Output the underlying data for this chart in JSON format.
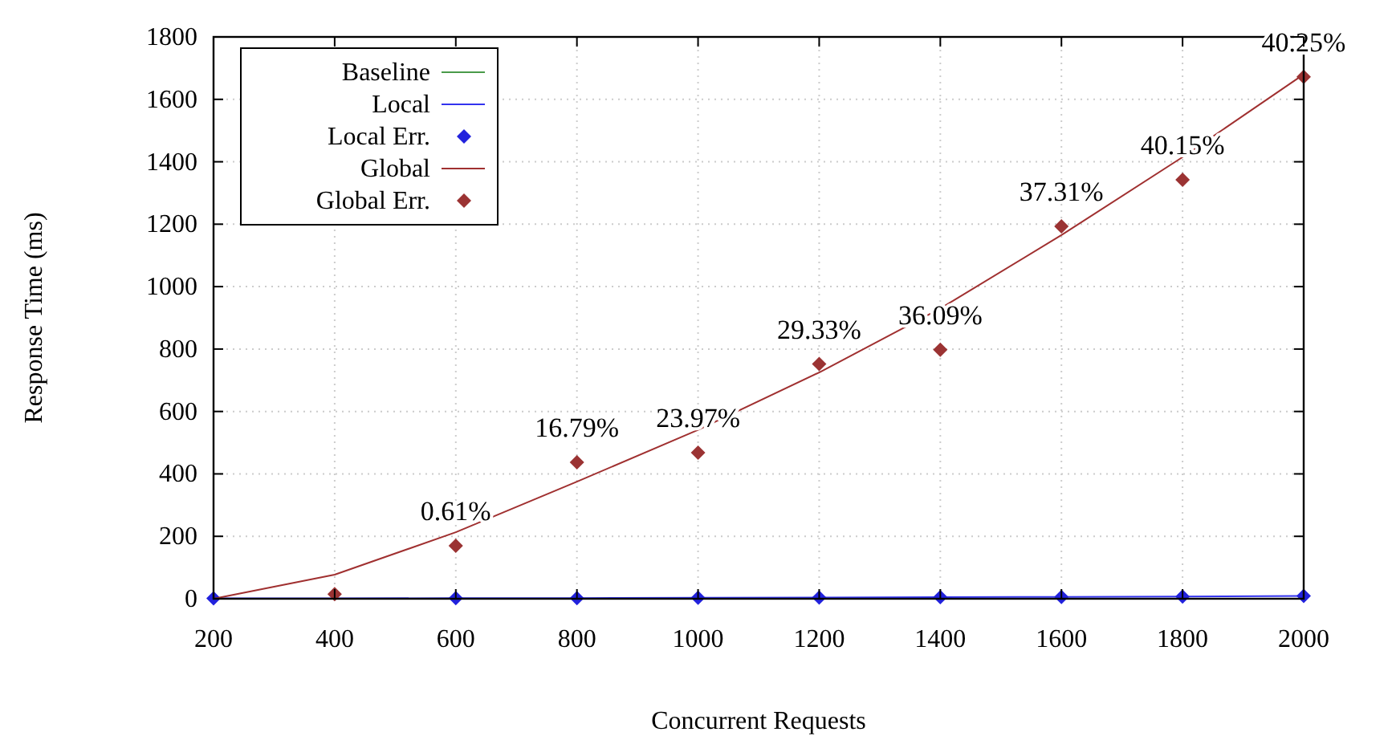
{
  "chart_data": {
    "type": "line",
    "xlabel": "Concurrent Requests",
    "ylabel": "Response Time (ms)",
    "x": [
      200,
      400,
      600,
      800,
      1000,
      1200,
      1400,
      1600,
      1800,
      2000
    ],
    "xlim": [
      200,
      2000
    ],
    "xticks": [
      200,
      400,
      600,
      800,
      1000,
      1200,
      1400,
      1600,
      1800,
      2000
    ],
    "ylim": [
      0,
      1800
    ],
    "yticks": [
      0,
      200,
      400,
      600,
      800,
      1000,
      1200,
      1400,
      1600,
      1800
    ],
    "grid": true,
    "legend": "top left",
    "series": [
      {
        "name": "Baseline",
        "color": "#4a9a4a",
        "values": [
          null,
          null,
          null,
          null,
          null,
          null,
          null,
          null,
          null,
          null
        ]
      },
      {
        "name": "Local",
        "color": "#3333ee",
        "values": [
          1,
          1,
          2,
          2,
          3,
          4,
          5,
          6,
          7,
          9
        ]
      },
      {
        "name": "Local Err.",
        "type": "scatter",
        "marker": "diamond",
        "color": "#2222dd",
        "values": [
          1,
          null,
          2,
          2,
          3,
          4,
          5,
          6,
          7,
          9
        ]
      },
      {
        "name": "Global",
        "color": "#a03030",
        "values": [
          0,
          77,
          213,
          375,
          541,
          725,
          930,
          1165,
          1415,
          1680
        ]
      },
      {
        "name": "Global Err.",
        "type": "scatter",
        "marker": "diamond",
        "color": "#9b3333",
        "values": [
          null,
          15,
          170,
          437,
          468,
          752,
          798,
          1193,
          1342,
          1672
        ]
      }
    ],
    "annotations": [
      {
        "text": "0.61%",
        "x": 600,
        "y": 170
      },
      {
        "text": "16.79%",
        "x": 800,
        "y": 437
      },
      {
        "text": "23.97%",
        "x": 1000,
        "y": 468
      },
      {
        "text": "29.33%",
        "x": 1200,
        "y": 752
      },
      {
        "text": "36.09%",
        "x": 1400,
        "y": 798
      },
      {
        "text": "37.31%",
        "x": 1600,
        "y": 1193
      },
      {
        "text": "40.15%",
        "x": 1800,
        "y": 1342
      },
      {
        "text": "40.25%",
        "x": 2000,
        "y": 1672
      }
    ]
  }
}
